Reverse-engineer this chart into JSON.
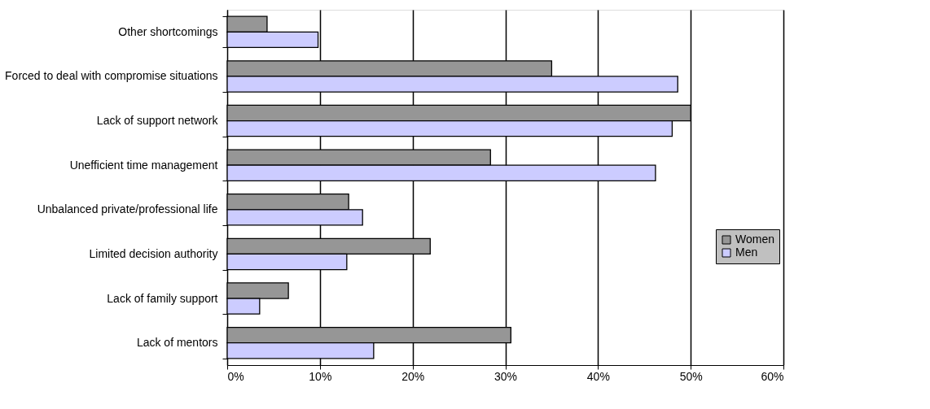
{
  "chart_data": {
    "type": "bar",
    "orientation": "horizontal",
    "categories": [
      "Other shortcomings",
      "Forced to deal with compromise situations",
      "Lack of support network",
      "Unefficient time management",
      "Unbalanced private/professional life",
      "Limited decision authority",
      "Lack of family support",
      "Lack of mentors"
    ],
    "series": [
      {
        "name": "Women",
        "color": "#969696",
        "values": [
          4.3,
          35.0,
          50.0,
          28.4,
          13.1,
          21.9,
          6.6,
          30.6
        ]
      },
      {
        "name": "Men",
        "color": "#ccccff",
        "values": [
          9.8,
          48.6,
          48.0,
          46.2,
          14.6,
          12.9,
          3.5,
          15.8
        ]
      }
    ],
    "xlim": [
      0,
      60
    ],
    "xticks": [
      {
        "value": 0,
        "label": "0%"
      },
      {
        "value": 10,
        "label": "10%"
      },
      {
        "value": 20,
        "label": "20%"
      },
      {
        "value": 30,
        "label": "30%"
      },
      {
        "value": 40,
        "label": "40%"
      },
      {
        "value": 50,
        "label": "50%"
      },
      {
        "value": 60,
        "label": "60%"
      }
    ],
    "grid": "x",
    "legend": "right"
  }
}
